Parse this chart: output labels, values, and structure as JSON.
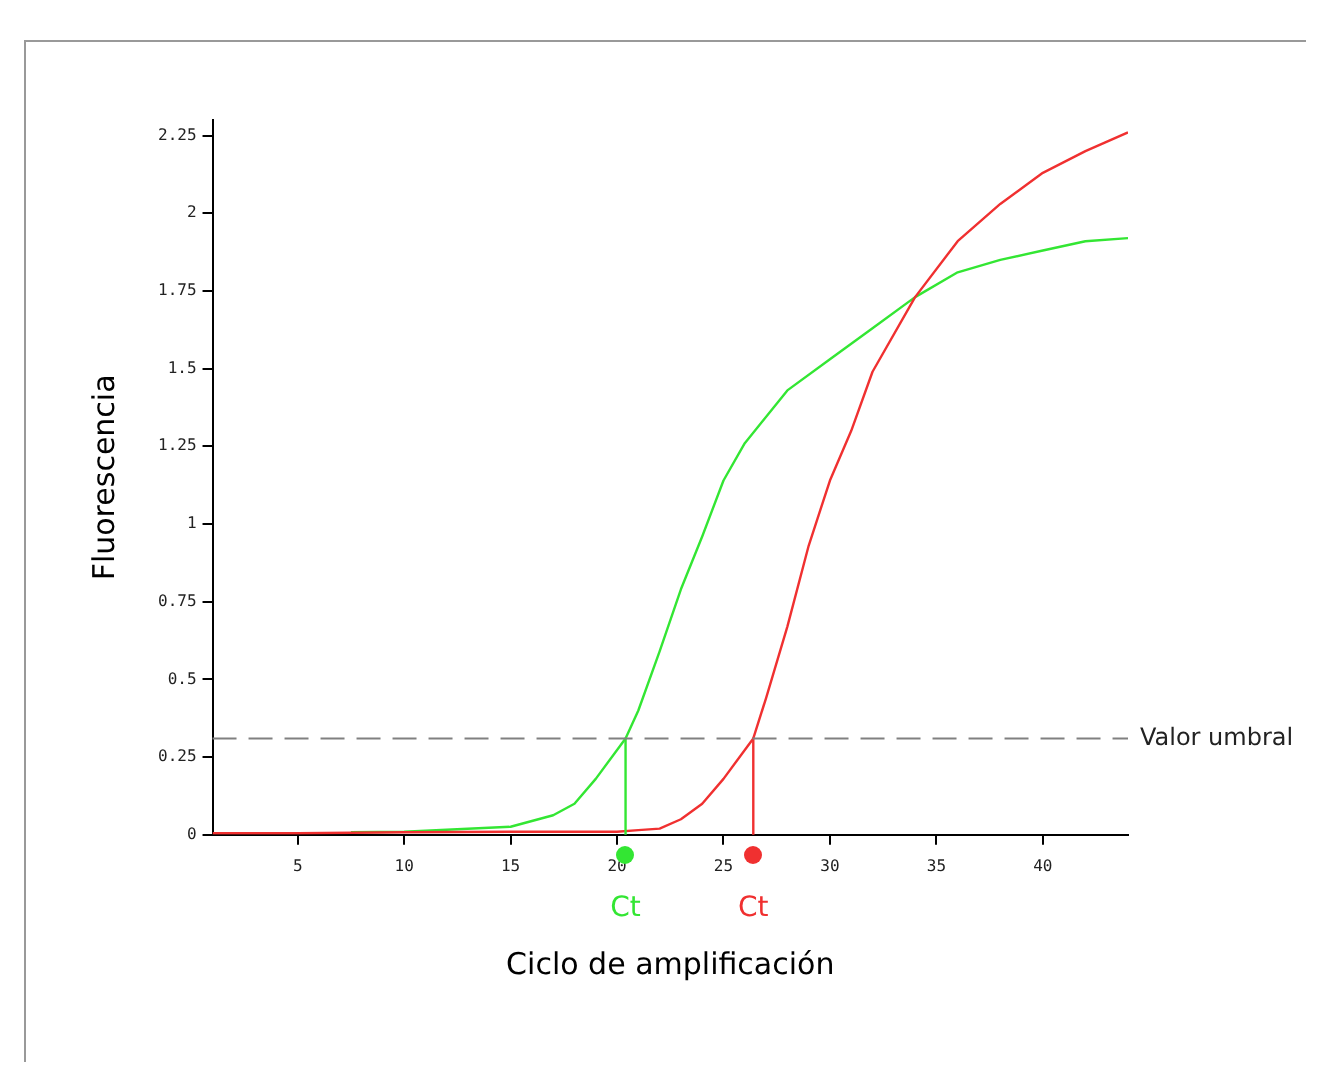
{
  "chart_data": {
    "type": "line",
    "xlabel": "Ciclo de amplificación",
    "ylabel": "Fluorescencia",
    "xlim": [
      1,
      44
    ],
    "xticks": [
      5,
      10,
      15,
      20,
      25,
      30,
      35,
      40
    ],
    "ylim": [
      0,
      2.3
    ],
    "yticks": [
      0,
      0.25,
      0.5,
      0.75,
      1,
      1.25,
      1.5,
      1.75,
      2,
      2.25
    ],
    "grid": false,
    "legend": false,
    "marker": "none",
    "line_style": "solid",
    "series": [
      {
        "color": "#33e633",
        "x": [
          7.5,
          10,
          15,
          17,
          18,
          19,
          20.4,
          21,
          22,
          23,
          24,
          25,
          26,
          28,
          30,
          32,
          34,
          36,
          38,
          40,
          42,
          44
        ],
        "values": [
          0.008,
          0.01,
          0.026,
          0.063,
          0.1,
          0.18,
          0.31,
          0.4,
          0.59,
          0.79,
          0.96,
          1.14,
          1.26,
          1.43,
          1.53,
          1.63,
          1.73,
          1.81,
          1.85,
          1.88,
          1.91,
          1.92
        ]
      },
      {
        "color": "#f03030",
        "x": [
          1,
          5,
          10,
          15,
          20,
          21,
          22,
          23,
          24,
          25,
          26.4,
          27,
          28,
          29,
          30,
          31,
          32,
          34,
          36,
          38,
          40,
          42,
          44
        ],
        "values": [
          0.005,
          0.005,
          0.008,
          0.01,
          0.01,
          0.015,
          0.02,
          0.05,
          0.1,
          0.18,
          0.31,
          0.44,
          0.67,
          0.93,
          1.14,
          1.3,
          1.49,
          1.73,
          1.91,
          2.03,
          2.13,
          2.2,
          2.26
        ]
      },
      {
        "color": "#33e633",
        "x": [
          20.4,
          20.4
        ],
        "values": [
          0.31,
          0
        ]
      },
      {
        "color": "#f03030",
        "x": [
          26.4,
          26.4
        ],
        "values": [
          0.31,
          0
        ]
      }
    ],
    "ref_lines": [
      {
        "axis": "y",
        "value": 0.31,
        "label": "Valor umbral",
        "color": "#808080",
        "line_style": "dashed"
      }
    ],
    "annotations": [
      {
        "text": "Ct",
        "x": 20.4,
        "y": 0
      },
      {
        "text": "Ct",
        "x": 26.4,
        "y": 0
      }
    ]
  }
}
